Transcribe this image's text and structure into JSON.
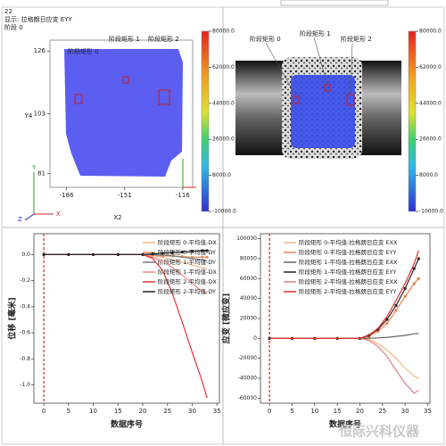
{
  "strain_map": {
    "frame": "22",
    "display": "显示: 拉格朗日应变 EYY",
    "stage": "阶段 0",
    "rect_labels": [
      "阶段矩形 0",
      "阶段矩形 1",
      "阶段矩形 2"
    ],
    "xlabel": "X2",
    "ylabel": "Y4",
    "xlim": [
      -196,
      -110
    ],
    "ylim": [
      76,
      130
    ],
    "xticks": [
      -186,
      -151,
      -116
    ],
    "yticks": [
      126,
      103,
      81
    ],
    "axis_letters": [
      "Y",
      "X",
      "Z"
    ],
    "colorbar_lim": [
      -10000,
      80000
    ],
    "colorbar_ticks": [
      {
        "value": 80000,
        "label": "80000.0"
      },
      {
        "value": 62000,
        "label": "62000.0"
      },
      {
        "value": 44000,
        "label": "44000.0"
      },
      {
        "value": 26000,
        "label": "26000.0"
      },
      {
        "value": 8000,
        "label": "8000.0"
      },
      {
        "value": -10000,
        "label": "-10000.0"
      }
    ]
  },
  "specimen_view": {
    "rect_labels": [
      "阶段矩形 0",
      "阶段矩形 1",
      "阶段矩形 2"
    ],
    "colorbar_lim": [
      -10000,
      80000
    ],
    "colorbar_ticks": [
      {
        "value": 80000,
        "label": "80000.0"
      },
      {
        "value": 62000,
        "label": "62000.0"
      },
      {
        "value": 44000,
        "label": "44000.0"
      },
      {
        "value": 26000,
        "label": "26000.0"
      },
      {
        "value": 8000,
        "label": "8000.0"
      },
      {
        "value": -10000,
        "label": "-10000.0"
      }
    ]
  },
  "chart_data": [
    {
      "type": "line",
      "xlabel": "数据序号",
      "ylabel": "位移 [毫米]",
      "x": [
        0,
        5,
        10,
        15,
        20,
        22,
        24,
        26,
        28,
        30,
        32,
        33
      ],
      "xlim": [
        -2,
        35.5
      ],
      "xticks": [
        0,
        5,
        10,
        15,
        20,
        25,
        30,
        35
      ],
      "ylim": [
        -1.14,
        0.16
      ],
      "yticks": [
        {
          "value": 0,
          "label": "0.0"
        },
        {
          "value": -0.2,
          "label": "-0.2"
        },
        {
          "value": -0.4,
          "label": "-0.4"
        },
        {
          "value": -0.6,
          "label": "-0.6"
        },
        {
          "value": -0.8,
          "label": "-0.8"
        },
        {
          "value": -1,
          "label": "-1.0"
        }
      ],
      "marker_x": 0,
      "series": [
        {
          "name": "阶段矩形 0-平均值-DX",
          "color": "#e8b888",
          "markers": false,
          "values": [
            0,
            0,
            0,
            0,
            0,
            -0.01,
            -0.02,
            -0.04,
            -0.06,
            -0.08,
            -0.1,
            -0.11
          ]
        },
        {
          "name": "阶段矩形 0-平均值-DY",
          "color": "#e89060",
          "markers": true,
          "values": [
            0,
            0,
            0,
            0,
            0,
            -0.005,
            -0.01,
            -0.01,
            -0.015,
            -0.02,
            -0.02,
            -0.02
          ]
        },
        {
          "name": "阶段矩形 1-平均值-DY",
          "color": "#777777",
          "markers": false,
          "values": [
            0,
            0,
            0,
            0,
            0,
            0,
            -0.005,
            -0.01,
            -0.02,
            -0.03,
            -0.04,
            -0.05
          ]
        },
        {
          "name": "阶段矩形 1-平均值-DX",
          "color": "#f08888",
          "markers": false,
          "values": [
            0,
            0,
            0,
            0,
            0,
            -0.02,
            -0.05,
            -0.1,
            -0.16,
            -0.22,
            -0.28,
            -0.3
          ]
        },
        {
          "name": "阶段矩形 2-平均值-DX",
          "color": "#d83838",
          "markers": false,
          "values": [
            0,
            0,
            0,
            0,
            0,
            -0.03,
            -0.12,
            -0.3,
            -0.52,
            -0.75,
            -0.97,
            -1.1
          ]
        },
        {
          "name": "阶段矩形 2-平均值-DY",
          "color": "#222222",
          "markers": true,
          "values": [
            0,
            0,
            0,
            0,
            0,
            0.005,
            0.01,
            0.015,
            0.02,
            0.025,
            0.03,
            0.03
          ]
        }
      ]
    },
    {
      "type": "line",
      "xlabel": "数据序号",
      "ylabel": "应变 [微应变]",
      "x": [
        0,
        5,
        10,
        15,
        20,
        22,
        24,
        26,
        28,
        30,
        32,
        33
      ],
      "xlim": [
        -2,
        35.5
      ],
      "xticks": [
        0,
        5,
        10,
        15,
        20,
        25,
        30,
        35
      ],
      "ylim": [
        -65000,
        105000
      ],
      "yticks": [
        100000,
        80000,
        60000,
        40000,
        20000,
        0,
        -20000,
        -40000,
        -60000
      ],
      "marker_x": 0,
      "series": [
        {
          "name": "阶段矩形 0-平均值-拉格朗日应变 EXX",
          "color": "#f0b888",
          "markers": false,
          "values": [
            0,
            0,
            0,
            0,
            0,
            -1000,
            -5000,
            -12000,
            -20000,
            -30000,
            -38000,
            -40000
          ]
        },
        {
          "name": "阶段矩形 0-平均值-拉格朗日应变 EYY",
          "color": "#e8804a",
          "markers": true,
          "values": [
            0,
            0,
            0,
            0,
            0,
            2000,
            7000,
            15000,
            28000,
            42000,
            55000,
            60000
          ]
        },
        {
          "name": "阶段矩形 1-平均值-拉格朗日应变 EXX",
          "color": "#666666",
          "markers": false,
          "values": [
            0,
            0,
            0,
            0,
            0,
            200,
            500,
            1000,
            2000,
            3000,
            4500,
            5000
          ]
        },
        {
          "name": "阶段矩形 1-平均值-拉格朗日应变 EYY",
          "color": "#222222",
          "markers": true,
          "values": [
            0,
            0,
            0,
            0,
            0,
            3000,
            9000,
            19000,
            33000,
            50000,
            70000,
            80000
          ]
        },
        {
          "name": "阶段矩形 2-平均值-拉格朗日应变 EXX",
          "color": "#e08080",
          "markers": false,
          "values": [
            0,
            0,
            0,
            0,
            0,
            -2000,
            -8000,
            -18000,
            -32000,
            -45000,
            -55000,
            -52000
          ]
        },
        {
          "name": "阶段矩形 2-平均值-拉格朗日应变 EYY",
          "color": "#e03030",
          "markers": false,
          "values": [
            0,
            0,
            0,
            0,
            0,
            3500,
            10000,
            22000,
            38000,
            55000,
            75000,
            88000
          ]
        }
      ]
    }
  ],
  "watermark": "恒际兴科仪器"
}
